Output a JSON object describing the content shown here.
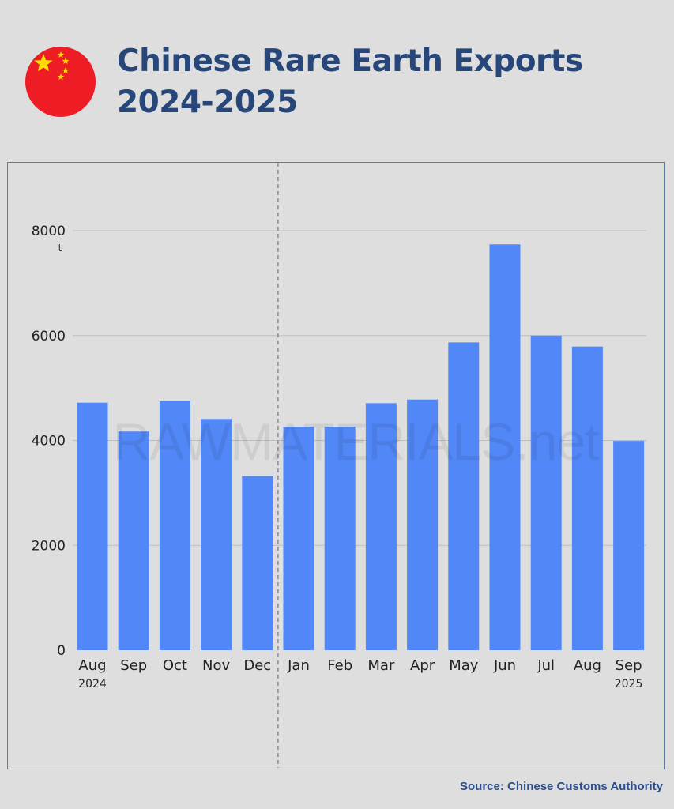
{
  "header": {
    "title_line1": "Chinese Rare Earth Exports",
    "title_line2": "2024-2025",
    "flag_icon": "china-flag-icon"
  },
  "chart_data": {
    "type": "bar",
    "title": "Chinese Rare Earth Exports 2024-2025",
    "categories": [
      "Aug",
      "Sep",
      "Oct",
      "Nov",
      "Dec",
      "Jan",
      "Feb",
      "Mar",
      "Apr",
      "May",
      "Jun",
      "Jul",
      "Aug",
      "Sep"
    ],
    "year_labels": [
      {
        "category_index": 0,
        "label": "2024"
      },
      {
        "category_index": 13,
        "label": "2025"
      }
    ],
    "values": [
      4720,
      4170,
      4750,
      4410,
      3320,
      4260,
      4260,
      4710,
      4780,
      5870,
      7740,
      6000,
      5790,
      3990
    ],
    "ylabel": "",
    "y_unit": "t",
    "yticks": [
      0,
      2000,
      4000,
      6000,
      8000
    ],
    "ylim": [
      0,
      9300
    ],
    "grid": true,
    "bar_color": "#5287f7",
    "divider_between": [
      "Dec",
      "Jan"
    ],
    "watermark": "RAWMATERIALS.net"
  },
  "source": "Source: Chinese Customs Authority",
  "colors": {
    "background": "#dedede",
    "title": "#27467a",
    "bar": "#5287f7",
    "flag_red": "#ee1c25",
    "flag_star": "#ffde00"
  }
}
